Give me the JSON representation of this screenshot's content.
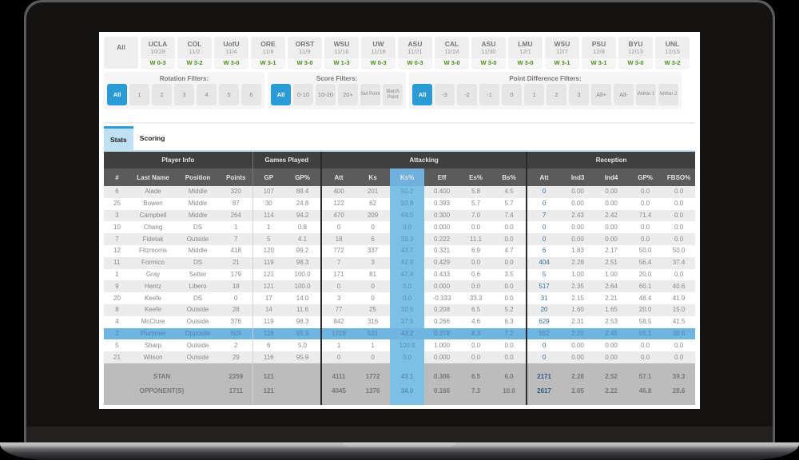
{
  "games": [
    {
      "opponent": "All",
      "date": "",
      "result": ""
    },
    {
      "opponent": "UCLA",
      "date": "10/28",
      "result": "W 0-3"
    },
    {
      "opponent": "COL",
      "date": "11/2",
      "result": "W 3-2"
    },
    {
      "opponent": "UofU",
      "date": "11/4",
      "result": "W 3-0"
    },
    {
      "opponent": "ORE",
      "date": "11/8",
      "result": "W 3-1"
    },
    {
      "opponent": "ORST",
      "date": "11/9",
      "result": "W 3-0"
    },
    {
      "opponent": "WSU",
      "date": "11/16",
      "result": "W 1-3"
    },
    {
      "opponent": "UW",
      "date": "11/18",
      "result": "W 0-3"
    },
    {
      "opponent": "ASU",
      "date": "11/21",
      "result": "W 0-3"
    },
    {
      "opponent": "CAL",
      "date": "11/24",
      "result": "W 3-0"
    },
    {
      "opponent": "ASU",
      "date": "11/30",
      "result": "W 3-0"
    },
    {
      "opponent": "LMU",
      "date": "12/1",
      "result": "W 3-0"
    },
    {
      "opponent": "WSU",
      "date": "12/7",
      "result": "W 3-1"
    },
    {
      "opponent": "PSU",
      "date": "12/8",
      "result": "W 3-1"
    },
    {
      "opponent": "BYU",
      "date": "12/13",
      "result": "W 3-0"
    },
    {
      "opponent": "UNL",
      "date": "12/15",
      "result": "W 3-2"
    }
  ],
  "filters": {
    "rotation": {
      "label": "Rotation Filters:",
      "options": [
        "All",
        "1",
        "2",
        "3",
        "4",
        "5",
        "6"
      ],
      "active": "All"
    },
    "score": {
      "label": "Score Filters:",
      "options": [
        "All",
        "0-10",
        "10-20",
        "20+",
        "Set Point",
        "Match Point"
      ],
      "active": "All"
    },
    "point_difference": {
      "label": "Point Difference Filters:",
      "options": [
        "All",
        "-3",
        "-2",
        "-1",
        "0",
        "1",
        "2",
        "3",
        "All+",
        "All-",
        "Within 1",
        "Within 2"
      ],
      "active": "All"
    }
  },
  "tabs": [
    {
      "label": "Stats",
      "active": true
    },
    {
      "label": "Scoring",
      "active": false
    }
  ],
  "table": {
    "groups": [
      {
        "label": "Player Info",
        "span": 4
      },
      {
        "label": "Games Played",
        "span": 2
      },
      {
        "label": "Attacking",
        "span": 6
      },
      {
        "label": "Reception",
        "span": 5
      }
    ],
    "columns": [
      "#",
      "Last Name",
      "Position",
      "Points",
      "GP",
      "GP%",
      "Att",
      "Ks",
      "Ks%",
      "Eff",
      "Es%",
      "Bs%",
      "Att",
      "Ind3",
      "Ind4",
      "GP%",
      "FBSO%"
    ],
    "highlight_column": "Ks%",
    "selected_row": "Plummer",
    "rows": [
      [
        "6",
        "Alade",
        "Middle",
        "320",
        "107",
        "88.4",
        "400",
        "201",
        "50.2",
        "0.400",
        "5.8",
        "4.5",
        "0",
        "0.00",
        "0.00",
        "0.0",
        "0.0"
      ],
      [
        "25",
        "Bowen",
        "Middle",
        "87",
        "30",
        "24.8",
        "122",
        "62",
        "50.8",
        "0.393",
        "5.7",
        "5.7",
        "0",
        "0.00",
        "0.00",
        "0.0",
        "0.0"
      ],
      [
        "3",
        "Campbell",
        "Middle",
        "264",
        "114",
        "94.2",
        "470",
        "209",
        "44.5",
        "0.300",
        "7.0",
        "7.4",
        "7",
        "2.43",
        "2.42",
        "71.4",
        "0.0"
      ],
      [
        "10",
        "Chang",
        "DS",
        "1",
        "1",
        "0.8",
        "0",
        "0",
        "0.0",
        "0.000",
        "0.0",
        "0.0",
        "0",
        "0.00",
        "0.00",
        "0.0",
        "0.0"
      ],
      [
        "7",
        "Fidelak",
        "Outside",
        "7",
        "5",
        "4.1",
        "18",
        "6",
        "33.3",
        "0.222",
        "11.1",
        "0.0",
        "0",
        "0.00",
        "0.00",
        "0.0",
        "0.0"
      ],
      [
        "12",
        "Fitzmorris",
        "Middle",
        "418",
        "120",
        "99.2",
        "772",
        "337",
        "43.7",
        "0.321",
        "6.9",
        "4.7",
        "6",
        "1.83",
        "2.17",
        "50.0",
        "50.0"
      ],
      [
        "11",
        "Formico",
        "DS",
        "21",
        "119",
        "98.3",
        "7",
        "3",
        "42.9",
        "0.429",
        "0.0",
        "0.0",
        "404",
        "2.28",
        "2.51",
        "56.4",
        "37.4"
      ],
      [
        "1",
        "Gray",
        "Setter",
        "179",
        "121",
        "100.0",
        "171",
        "81",
        "47.4",
        "0.433",
        "0.6",
        "3.5",
        "5",
        "1.00",
        "1.00",
        "20.0",
        "0.0"
      ],
      [
        "9",
        "Hentz",
        "Libero",
        "18",
        "121",
        "100.0",
        "0",
        "0",
        "0.0",
        "0.000",
        "0.0",
        "0.0",
        "517",
        "2.35",
        "2.64",
        "60.1",
        "40.6"
      ],
      [
        "20",
        "Keefe",
        "DS",
        "0",
        "17",
        "14.0",
        "3",
        "0",
        "0.0",
        "-0.333",
        "33.3",
        "0.0",
        "31",
        "2.15",
        "2.21",
        "48.4",
        "41.9"
      ],
      [
        "8",
        "Keefe",
        "Outside",
        "28",
        "14",
        "11.6",
        "77",
        "25",
        "32.5",
        "0.208",
        "6.5",
        "5.2",
        "20",
        "1.60",
        "1.65",
        "20.0",
        "15.0"
      ],
      [
        "4",
        "McClure",
        "Outside",
        "376",
        "119",
        "98.3",
        "842",
        "316",
        "37.5",
        "0.266",
        "4.6",
        "6.3",
        "629",
        "2.31",
        "2.53",
        "58.5",
        "41.5"
      ],
      [
        "2",
        "Plummer",
        "Opposite",
        "609",
        "116",
        "95.9",
        "1228",
        "531",
        "43.2",
        "0.278",
        "8.3",
        "7.2",
        "552",
        "2.22",
        "2.45",
        "55.1",
        "38.6"
      ],
      [
        "5",
        "Sharp",
        "Outside",
        "2",
        "6",
        "5.0",
        "1",
        "1",
        "100.0",
        "1.000",
        "0.0",
        "0.0",
        "0",
        "0.00",
        "0.00",
        "0.0",
        "0.0"
      ],
      [
        "21",
        "Wilson",
        "Outside",
        "29",
        "116",
        "95.9",
        "0",
        "0",
        "0.0",
        "0.000",
        "0.0",
        "0.0",
        "0",
        "0.00",
        "0.00",
        "0.0",
        "0.0"
      ]
    ],
    "totals": [
      {
        "label": "STAN",
        "values": [
          "2359",
          "121",
          "",
          "4111",
          "1772",
          "43.1",
          "0.306",
          "6.5",
          "6.0",
          "2171",
          "2.28",
          "2.52",
          "57.1",
          "39.3"
        ]
      },
      {
        "label": "OPPONENT(S)",
        "values": [
          "1711",
          "121",
          "",
          "4045",
          "1376",
          "34.0",
          "0.166",
          "7.3",
          "10.0",
          "2617",
          "2.05",
          "2.22",
          "46.8",
          "28.6"
        ]
      }
    ]
  },
  "colors": {
    "accent": "#2b9bd6",
    "highlight_column": "#7dc0e6",
    "selected_row": "#6fb5e2",
    "win": "#4c8a1e",
    "header_dark": "#3f3f3f",
    "header_mid": "#5b5b5b"
  }
}
